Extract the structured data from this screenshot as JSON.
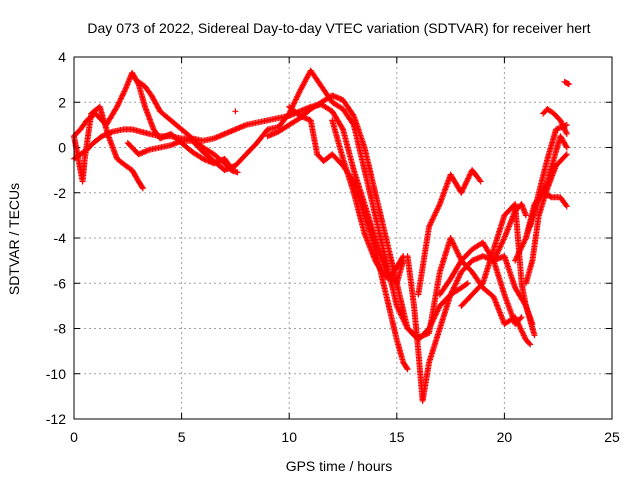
{
  "chart_data": {
    "type": "scatter",
    "title": "Day 073 of 2022, Sidereal Day-to-day VTEC variation (SDTVAR) for receiver hert",
    "xlabel": "GPS time / hours",
    "ylabel": "SDTVAR / TECUs",
    "xlim": [
      0,
      25
    ],
    "ylim": [
      -12,
      4
    ],
    "x_ticks": [
      "0",
      "5",
      "10",
      "15",
      "20",
      "25"
    ],
    "y_ticks": [
      "4",
      "2",
      "0",
      "-2",
      "-4",
      "-6",
      "-8",
      "-10",
      "-12"
    ],
    "grid": true,
    "marker": "+",
    "color": "#ff0000",
    "series": [
      {
        "x": [
          0.0,
          0.3,
          0.6,
          0.9,
          1.3,
          1.8,
          2.3,
          2.7,
          3.1,
          3.5,
          4.0,
          4.5,
          5.0,
          5.5,
          6.0,
          6.5,
          7.0,
          7.5,
          8.0,
          8.5,
          9.0,
          9.5,
          10.0,
          10.5,
          11.0,
          11.5,
          12.0,
          12.5,
          13.0,
          13.5,
          14.0,
          14.5,
          15.0,
          15.3
        ],
        "y": [
          -0.5,
          -0.3,
          -0.1,
          0.2,
          0.5,
          0.7,
          0.8,
          0.8,
          0.7,
          0.6,
          0.5,
          0.5,
          0.4,
          0.4,
          0.3,
          0.4,
          0.6,
          0.8,
          1.0,
          1.1,
          1.2,
          1.3,
          1.4,
          1.6,
          1.8,
          1.9,
          1.6,
          0.8,
          -1.0,
          -2.5,
          -4.0,
          -5.5,
          -6.0,
          -5.0
        ]
      },
      {
        "x": [
          0.0,
          0.3,
          0.6,
          1.0,
          1.5,
          2.0,
          2.4,
          2.7,
          3.0,
          3.3,
          3.7,
          4.0,
          4.5,
          5.0,
          5.5,
          6.0,
          6.5,
          7.0,
          7.3
        ],
        "y": [
          0.5,
          0.8,
          1.2,
          1.5,
          1.0,
          1.8,
          2.6,
          3.3,
          2.8,
          1.8,
          0.8,
          0.4,
          0.6,
          0.2,
          -0.2,
          -0.5,
          -0.7,
          -0.5,
          -0.9
        ]
      },
      {
        "x": [
          0.0,
          0.2,
          0.4,
          0.5,
          0.8,
          1.2,
          1.6,
          2.0,
          2.4,
          2.7,
          3.0,
          3.2
        ],
        "y": [
          0.5,
          -0.5,
          -1.5,
          -0.5,
          1.5,
          1.8,
          0.5,
          -0.5,
          -0.8,
          -1.0,
          -1.5,
          -1.8
        ]
      },
      {
        "x": [
          2.5,
          3.0,
          3.5,
          4.0,
          4.5,
          5.0,
          5.5,
          6.0,
          6.5,
          7.0,
          7.5,
          8.0,
          8.5,
          9.0,
          9.5,
          10.0,
          10.5,
          11.0,
          11.5,
          12.0,
          12.5,
          13.0,
          13.5,
          14.0,
          14.5,
          15.0,
          15.5,
          16.0,
          16.5
        ],
        "y": [
          0.2,
          -0.3,
          -0.1,
          0.0,
          0.1,
          0.3,
          0.3,
          -0.2,
          -0.6,
          -1.0,
          -0.8,
          -0.3,
          0.2,
          0.8,
          0.9,
          1.5,
          2.5,
          3.4,
          2.7,
          2.0,
          1.7,
          1.0,
          -1.0,
          -3.0,
          -5.0,
          -7.0,
          -8.0,
          -8.4,
          -8.2
        ]
      },
      {
        "x": [
          3.0,
          3.3,
          3.6,
          4.0,
          4.5,
          5.0,
          5.5,
          6.0,
          6.5,
          7.0,
          7.3,
          7.6
        ],
        "y": [
          2.9,
          2.7,
          2.3,
          1.6,
          1.2,
          0.8,
          0.4,
          0.0,
          -0.3,
          -0.7,
          -1.0,
          -1.1
        ]
      },
      {
        "x": [
          9.0,
          9.5,
          10.0,
          10.5,
          11.0,
          11.5,
          12.0,
          12.5,
          13.0,
          13.5,
          14.0,
          14.5,
          15.0,
          15.5,
          16.0,
          16.5,
          17.0,
          17.5,
          18.0,
          18.3
        ],
        "y": [
          0.5,
          0.7,
          1.0,
          1.3,
          1.7,
          2.0,
          2.3,
          2.1,
          1.4,
          0.0,
          -2.0,
          -4.0,
          -6.0,
          -8.0,
          -8.5,
          -8.0,
          -7.0,
          -6.5,
          -6.2,
          -6.0
        ]
      },
      {
        "x": [
          10.0,
          10.5,
          11.0,
          11.3,
          11.6,
          12.0,
          12.5,
          13.0,
          13.5,
          14.0,
          14.5,
          15.0,
          15.3,
          15.5
        ],
        "y": [
          1.8,
          1.4,
          1.2,
          -0.3,
          -0.6,
          -0.3,
          -0.8,
          -1.5,
          -3.0,
          -4.5,
          -6.5,
          -8.5,
          -9.5,
          -9.8
        ]
      },
      {
        "x": [
          12.0,
          12.5,
          13.0,
          13.5,
          14.0,
          14.3,
          14.6,
          15.0,
          15.3
        ],
        "y": [
          1.2,
          -0.5,
          -2.0,
          -3.8,
          -5.0,
          -5.5,
          -5.8,
          -5.3,
          -4.8
        ]
      },
      {
        "x": [
          15.5,
          15.8,
          16.0,
          16.2,
          16.5,
          17.0,
          17.5,
          18.0,
          18.5,
          19.0,
          19.5,
          20.0,
          20.5,
          20.8
        ],
        "y": [
          -4.8,
          -7.0,
          -9.0,
          -11.2,
          -9.5,
          -8.0,
          -6.5,
          -5.5,
          -5.0,
          -4.8,
          -5.0,
          -6.5,
          -7.8,
          -7.5
        ]
      },
      {
        "x": [
          16.0,
          16.5,
          17.0,
          17.5,
          18.0,
          18.5,
          18.9
        ],
        "y": [
          -6.5,
          -3.5,
          -2.5,
          -1.2,
          -2.0,
          -1.0,
          -1.5
        ]
      },
      {
        "x": [
          16.5,
          17.0,
          17.5,
          18.0,
          18.5,
          19.0,
          19.5,
          20.0,
          20.5,
          21.0,
          21.2
        ],
        "y": [
          -8.2,
          -5.5,
          -4.0,
          -5.0,
          -5.5,
          -6.2,
          -6.6,
          -7.8,
          -7.5,
          -8.5,
          -8.7
        ]
      },
      {
        "x": [
          17.0,
          17.5,
          18.0,
          18.5,
          19.0,
          19.5,
          20.0,
          20.5,
          21.0,
          21.4
        ],
        "y": [
          -6.5,
          -5.8,
          -5.0,
          -4.5,
          -4.2,
          -5.0,
          -4.8,
          -6.2,
          -7.0,
          -8.3
        ]
      },
      {
        "x": [
          18.0,
          18.5,
          19.0,
          19.5,
          20.0,
          20.5,
          20.8,
          21.0,
          21.3
        ],
        "y": [
          -7.0,
          -6.5,
          -6.0,
          -4.5,
          -3.0,
          -2.5,
          -6.0,
          -7.0,
          -7.8
        ]
      },
      {
        "x": [
          19.5,
          20.0,
          20.5,
          20.8,
          21.0
        ],
        "y": [
          -5.0,
          -4.0,
          -2.8,
          -2.5,
          -3.0
        ]
      },
      {
        "x": [
          20.5,
          21.0,
          21.5,
          22.0,
          22.3,
          22.6,
          22.9
        ],
        "y": [
          -5.0,
          -4.0,
          -2.5,
          -1.5,
          -0.5,
          0.5,
          0.0
        ]
      },
      {
        "x": [
          21.0,
          21.3,
          21.6,
          22.0,
          22.4,
          22.9
        ],
        "y": [
          -6.0,
          -5.0,
          -3.0,
          -1.8,
          -0.8,
          -0.3
        ]
      },
      {
        "x": [
          21.0,
          21.4,
          21.8,
          22.2,
          22.6,
          22.9
        ],
        "y": [
          -4.0,
          -2.5,
          -2.0,
          -2.2,
          -2.2,
          -2.6
        ]
      },
      {
        "x": [
          21.2,
          21.6,
          22.0,
          22.4,
          22.9
        ],
        "y": [
          -3.5,
          -2.0,
          -0.5,
          0.8,
          1.0
        ]
      },
      {
        "x": [
          21.8,
          22.0,
          22.3,
          22.6,
          22.9
        ],
        "y": [
          1.5,
          1.7,
          1.5,
          1.2,
          0.6
        ]
      },
      {
        "x": [
          22.8,
          23.0
        ],
        "y": [
          2.9,
          2.8
        ]
      },
      {
        "x": [
          7.5
        ],
        "y": [
          1.6
        ]
      }
    ]
  }
}
